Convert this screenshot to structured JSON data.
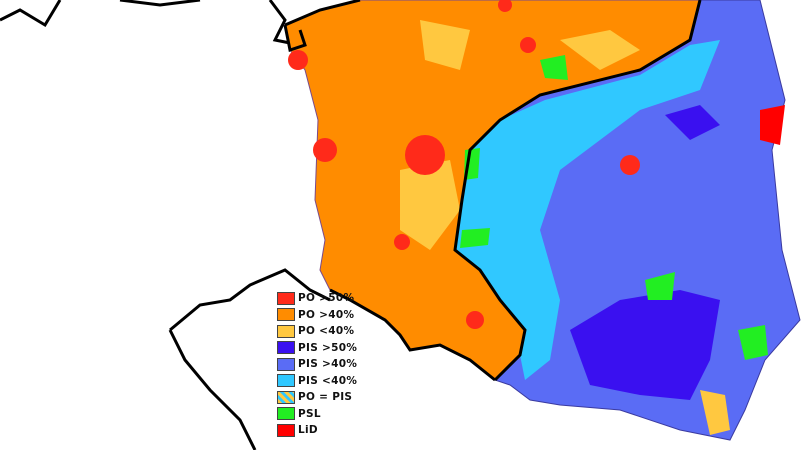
{
  "legend": [
    {
      "label": "PO >50%",
      "color": "#ff2a1a"
    },
    {
      "label": "PO >40%",
      "color": "#ff8c00"
    },
    {
      "label": "PO <40%",
      "color": "#ffc840"
    },
    {
      "label": "PIS >50%",
      "color": "#3a10f0"
    },
    {
      "label": "PIS >40%",
      "color": "#5a6cf5"
    },
    {
      "label": "PIS <40%",
      "color": "#30c8ff"
    },
    {
      "label": "PO = PIS",
      "color": "striped"
    },
    {
      "label": "PSL",
      "color": "#22ee22"
    },
    {
      "label": "LiD",
      "color": "#ff0000"
    }
  ]
}
